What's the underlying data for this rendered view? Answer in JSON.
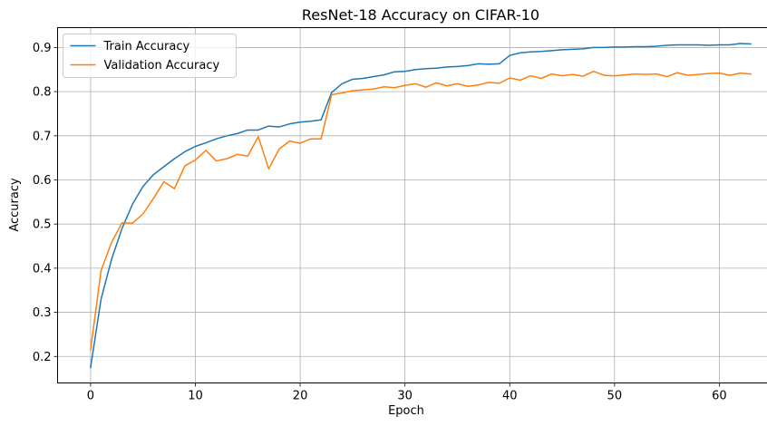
{
  "chart_data": {
    "type": "line",
    "title": "ResNet-18 Accuracy on CIFAR-10",
    "xlabel": "Epoch",
    "ylabel": "Accuracy",
    "xlim": [
      -3.15,
      66.15
    ],
    "ylim": [
      0.14,
      0.945
    ],
    "x_ticks": [
      0,
      10,
      20,
      30,
      40,
      50,
      60
    ],
    "y_ticks": [
      0.2,
      0.3,
      0.4,
      0.5,
      0.6,
      0.7,
      0.8,
      0.9
    ],
    "y_tick_labels": [
      "0.2",
      "0.3",
      "0.4",
      "0.5",
      "0.6",
      "0.7",
      "0.8",
      "0.9"
    ],
    "grid": true,
    "legend_position": "top-left",
    "x": [
      0,
      1,
      2,
      3,
      4,
      5,
      6,
      7,
      8,
      9,
      10,
      11,
      12,
      13,
      14,
      15,
      16,
      17,
      18,
      19,
      20,
      21,
      22,
      23,
      24,
      25,
      26,
      27,
      28,
      29,
      30,
      31,
      32,
      33,
      34,
      35,
      36,
      37,
      38,
      39,
      40,
      41,
      42,
      43,
      44,
      45,
      46,
      47,
      48,
      49,
      50,
      51,
      52,
      53,
      54,
      55,
      56,
      57,
      58,
      59,
      60,
      61,
      62,
      63
    ],
    "series": [
      {
        "name": "Train Accuracy",
        "color": "#1f77b4",
        "values": [
          0.175,
          0.33,
          0.42,
          0.49,
          0.545,
          0.585,
          0.612,
          0.63,
          0.648,
          0.664,
          0.676,
          0.684,
          0.693,
          0.7,
          0.705,
          0.713,
          0.713,
          0.722,
          0.72,
          0.727,
          0.731,
          0.733,
          0.736,
          0.798,
          0.818,
          0.828,
          0.83,
          0.834,
          0.838,
          0.845,
          0.846,
          0.85,
          0.852,
          0.853,
          0.856,
          0.857,
          0.859,
          0.863,
          0.862,
          0.863,
          0.882,
          0.888,
          0.89,
          0.891,
          0.893,
          0.895,
          0.896,
          0.897,
          0.9,
          0.9,
          0.901,
          0.901,
          0.902,
          0.902,
          0.903,
          0.905,
          0.906,
          0.906,
          0.906,
          0.905,
          0.906,
          0.906,
          0.909,
          0.908
        ]
      },
      {
        "name": "Validation Accuracy",
        "color": "#ff7f0e",
        "values": [
          0.215,
          0.395,
          0.458,
          0.503,
          0.502,
          0.523,
          0.558,
          0.596,
          0.58,
          0.632,
          0.645,
          0.667,
          0.643,
          0.648,
          0.658,
          0.654,
          0.698,
          0.625,
          0.67,
          0.688,
          0.683,
          0.693,
          0.693,
          0.793,
          0.797,
          0.802,
          0.804,
          0.806,
          0.811,
          0.809,
          0.814,
          0.818,
          0.81,
          0.82,
          0.813,
          0.818,
          0.812,
          0.815,
          0.821,
          0.819,
          0.831,
          0.826,
          0.836,
          0.83,
          0.84,
          0.836,
          0.839,
          0.835,
          0.846,
          0.837,
          0.836,
          0.838,
          0.84,
          0.839,
          0.84,
          0.834,
          0.843,
          0.837,
          0.839,
          0.841,
          0.842,
          0.837,
          0.842,
          0.84
        ]
      }
    ]
  }
}
